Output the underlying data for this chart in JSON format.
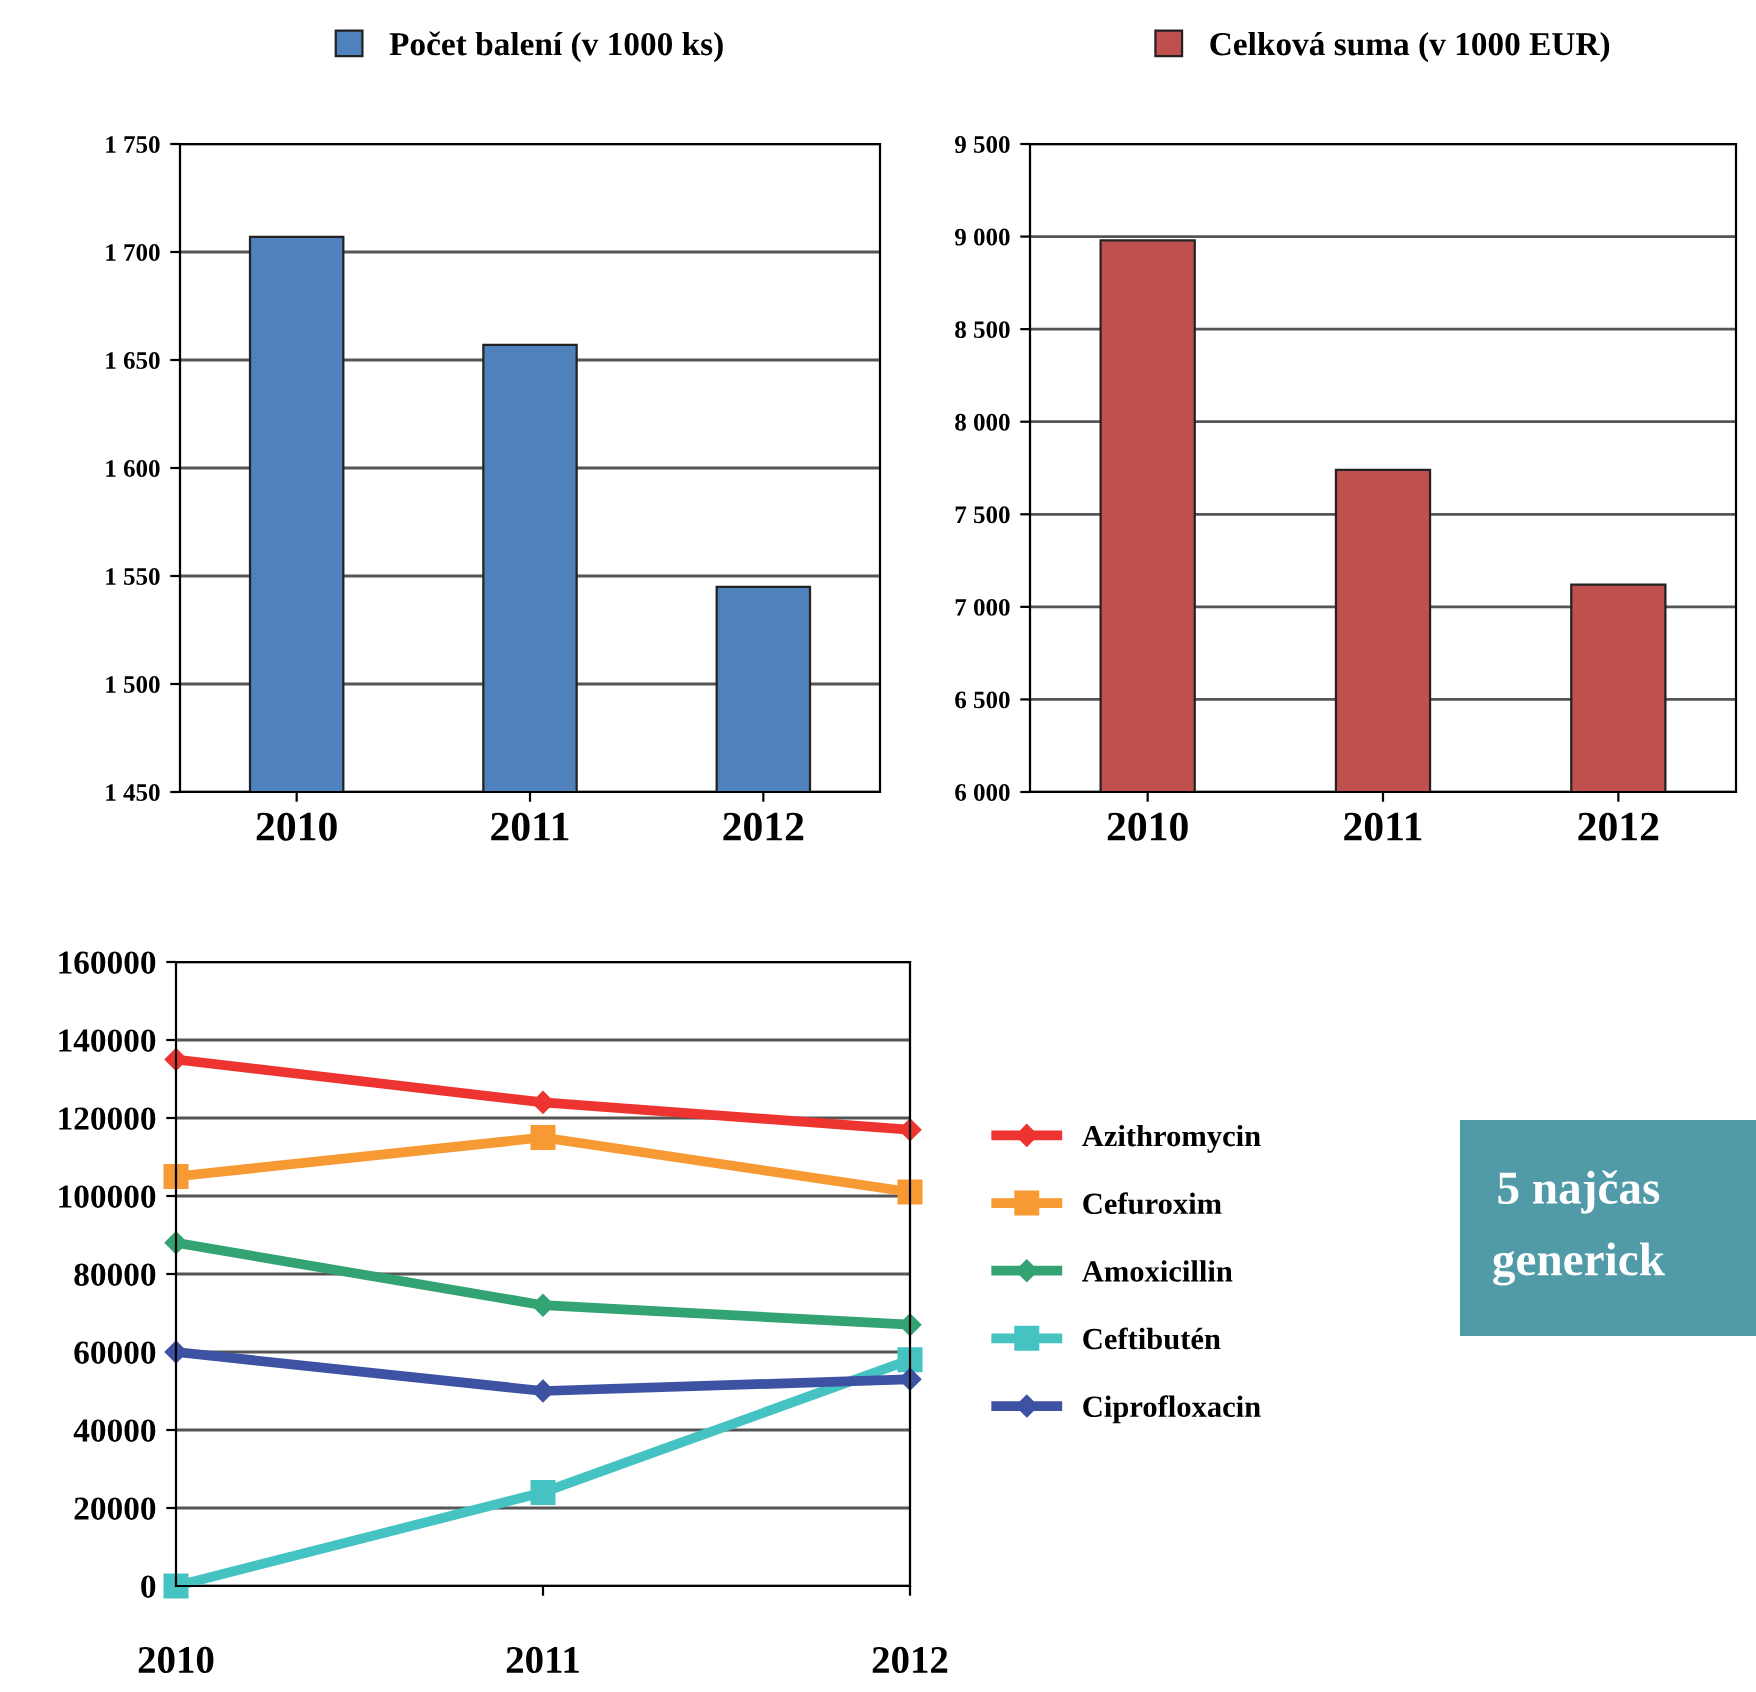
{
  "chart_data": [
    {
      "type": "bar",
      "categories": [
        "2010",
        "2011",
        "2012"
      ],
      "series": [
        {
          "name": "Počet balení (v 1000 ks)",
          "color": "#4f81bd",
          "values": [
            1707,
            1657,
            1545
          ]
        }
      ],
      "ylim": [
        1450,
        1750
      ],
      "yticks": [
        {
          "value": 1450,
          "label": "1 450"
        },
        {
          "value": 1500,
          "label": "1 500"
        },
        {
          "value": 1550,
          "label": "1 550"
        },
        {
          "value": 1600,
          "label": "1 600"
        },
        {
          "value": 1650,
          "label": "1 650"
        },
        {
          "value": 1700,
          "label": "1 700"
        },
        {
          "value": 1750,
          "label": "1 750"
        }
      ],
      "grid": "y",
      "legend": "top"
    },
    {
      "type": "bar",
      "categories": [
        "2010",
        "2011",
        "2012"
      ],
      "series": [
        {
          "name": "Celková suma (v 1000 EUR)",
          "color": "#c0504d",
          "values": [
            8980,
            7740,
            7120
          ]
        }
      ],
      "ylim": [
        6000,
        9500
      ],
      "yticks": [
        {
          "value": 6000,
          "label": "6 000"
        },
        {
          "value": 6500,
          "label": "6 500"
        },
        {
          "value": 7000,
          "label": "7 000"
        },
        {
          "value": 7500,
          "label": "7 500"
        },
        {
          "value": 8000,
          "label": "8 000"
        },
        {
          "value": 8500,
          "label": "8 500"
        },
        {
          "value": 9000,
          "label": "9 000"
        },
        {
          "value": 9500,
          "label": "9 500"
        }
      ],
      "grid": "y",
      "legend": "top"
    },
    {
      "type": "line",
      "categories": [
        "2010",
        "2011",
        "2012"
      ],
      "series": [
        {
          "name": "Azithromycin",
          "color": "#ee3430",
          "marker": "diamond",
          "values": [
            135000,
            124000,
            117000
          ]
        },
        {
          "name": "Cefuroxim",
          "color": "#f79a33",
          "marker": "square",
          "values": [
            105000,
            115000,
            101000
          ]
        },
        {
          "name": "Amoxicillin",
          "color": "#33a373",
          "marker": "diamond",
          "values": [
            88000,
            72000,
            67000
          ]
        },
        {
          "name": "Ceftibutén",
          "color": "#45c3c3",
          "marker": "square",
          "values": [
            0,
            24000,
            58000
          ]
        },
        {
          "name": "Ciprofloxacin",
          "color": "#3e52a3",
          "marker": "diamond",
          "values": [
            60000,
            50000,
            53000
          ]
        }
      ],
      "ylim": [
        0,
        160000
      ],
      "yticks": [
        0,
        20000,
        40000,
        60000,
        80000,
        100000,
        120000,
        140000,
        160000
      ],
      "grid": "y",
      "legend": "right"
    },
    {
      "type": "other",
      "annotations": [
        "5 najčas",
        "generick"
      ]
    }
  ]
}
